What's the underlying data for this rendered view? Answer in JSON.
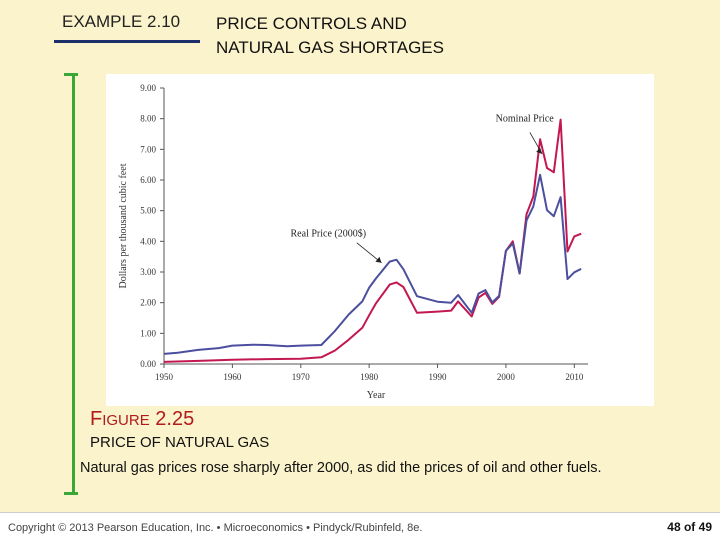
{
  "slide": {
    "label": "EXAMPLE 2.10",
    "title_line1": "PRICE CONTROLS AND",
    "title_line2": "NATURAL GAS SHORTAGES"
  },
  "figure": {
    "number_initial": "F",
    "number_rest": "IGURE",
    "number_value": "2.25",
    "title": "PRICE OF NATURAL GAS",
    "caption": "Natural gas prices rose sharply after 2000, as did the prices of oil and other fuels."
  },
  "footer": {
    "copyright": "Copyright © 2013 Pearson Education, Inc. • Microeconomics • Pindyck/Rubinfeld, 8e.",
    "page": "48 of 49"
  },
  "colors": {
    "background": "#fbf3cc",
    "nominal": "#c2184f",
    "real": "#4b4f9e",
    "accent_bar": "#3aa635",
    "figure_number": "#b11b1b"
  },
  "chart_data": {
    "type": "line",
    "xlabel": "Year",
    "ylabel": "Dollars per thousand cubic feet",
    "xlim": [
      1950,
      2012
    ],
    "ylim": [
      0,
      9
    ],
    "x_ticks": [
      "1950",
      "1960",
      "1970",
      "1980",
      "1990",
      "2000",
      "2010"
    ],
    "y_ticks": [
      "0.00",
      "1.00",
      "2.00",
      "3.00",
      "4.00",
      "5.00",
      "6.00",
      "7.00",
      "8.00",
      "9.00"
    ],
    "annotations": [
      "Nominal Price",
      "Real Price (2000$)"
    ],
    "series": [
      {
        "name": "Nominal Price",
        "x": [
          1950,
          1955,
          1960,
          1965,
          1970,
          1973,
          1975,
          1977,
          1979,
          1980,
          1981,
          1983,
          1984,
          1985,
          1987,
          1990,
          1992,
          1993,
          1995,
          1996,
          1997,
          1998,
          1999,
          2000,
          2001,
          2002,
          2003,
          2004,
          2005,
          2006,
          2007,
          2008,
          2009,
          2010,
          2011
        ],
        "values": [
          0.07,
          0.1,
          0.14,
          0.16,
          0.17,
          0.22,
          0.44,
          0.79,
          1.18,
          1.59,
          1.98,
          2.59,
          2.66,
          2.51,
          1.67,
          1.71,
          1.74,
          2.04,
          1.55,
          2.17,
          2.32,
          1.96,
          2.19,
          3.69,
          4.0,
          2.95,
          4.88,
          5.46,
          7.33,
          6.39,
          6.25,
          7.97,
          3.67,
          4.16,
          4.25
        ]
      },
      {
        "name": "Real Price (2000$)",
        "x": [
          1950,
          1952,
          1955,
          1958,
          1960,
          1963,
          1965,
          1968,
          1970,
          1973,
          1975,
          1977,
          1979,
          1980,
          1981,
          1983,
          1984,
          1985,
          1987,
          1990,
          1992,
          1993,
          1995,
          1996,
          1997,
          1998,
          1999,
          2000,
          2001,
          2002,
          2003,
          2004,
          2005,
          2006,
          2007,
          2008,
          2009,
          2010,
          2011
        ],
        "values": [
          0.33,
          0.37,
          0.46,
          0.52,
          0.6,
          0.63,
          0.62,
          0.58,
          0.6,
          0.62,
          1.08,
          1.61,
          2.04,
          2.49,
          2.79,
          3.34,
          3.4,
          3.09,
          2.21,
          2.03,
          2.0,
          2.25,
          1.67,
          2.3,
          2.41,
          2.01,
          2.22,
          3.69,
          3.93,
          2.95,
          4.68,
          5.14,
          6.17,
          5.02,
          4.82,
          5.44,
          2.77,
          2.99,
          3.1
        ]
      }
    ]
  }
}
